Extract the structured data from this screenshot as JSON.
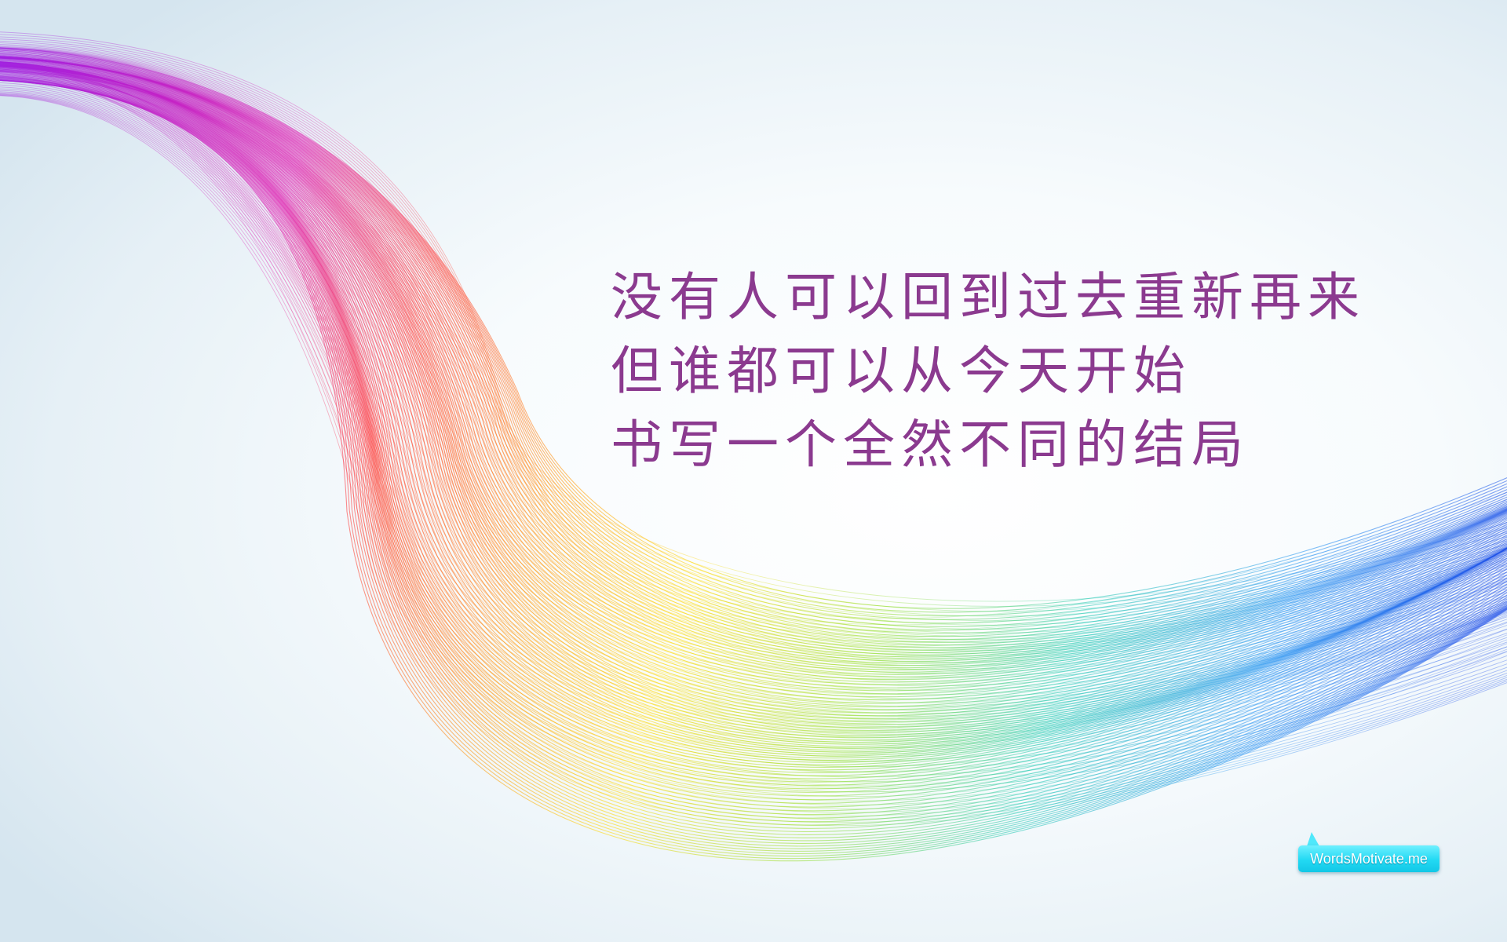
{
  "quote": {
    "lines": [
      "没有人可以回到过去重新再来",
      "但谁都可以从今天开始",
      "书写一个全然不同的结局"
    ],
    "text_color": "#8b3a8f"
  },
  "brand": {
    "label": "WordsMotivate.me",
    "color": "#22d9f3"
  },
  "ribbon": {
    "colors": [
      "#a020e0",
      "#e020b0",
      "#ff3030",
      "#ff9000",
      "#ffd800",
      "#90dc20",
      "#20c8b0",
      "#2090f0",
      "#2050e8"
    ]
  }
}
